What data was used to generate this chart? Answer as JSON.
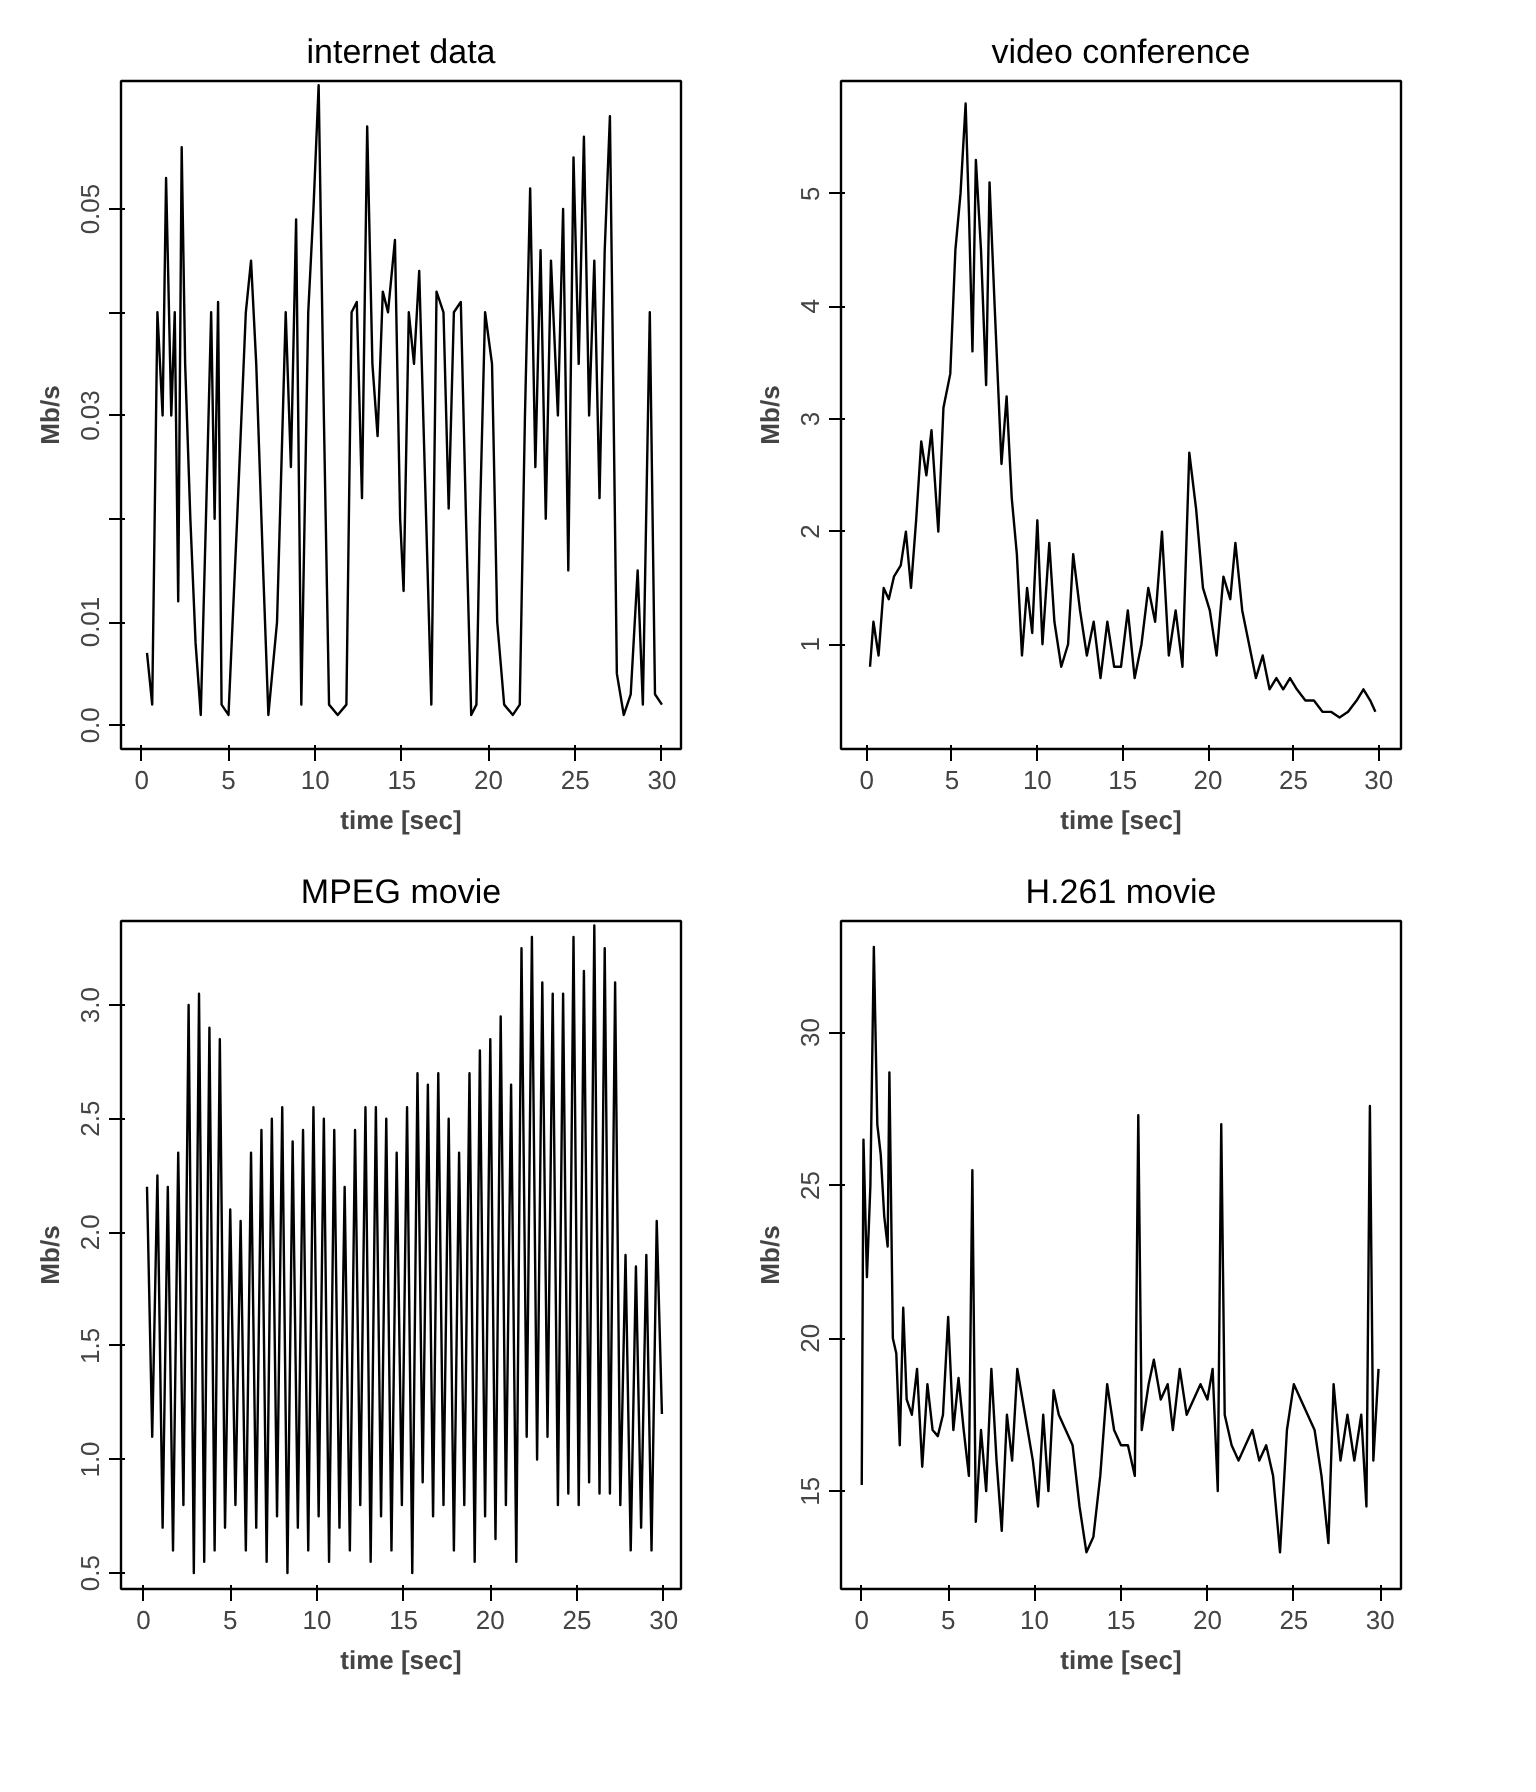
{
  "chart_data": [
    {
      "type": "line",
      "title": "internet data",
      "xlabel": "time [sec]",
      "ylabel": "Mb/s",
      "color": "#000000",
      "xlim": [
        -1.2,
        31.1
      ],
      "ylim": [
        -0.0023,
        0.0624
      ],
      "xticks": [
        0,
        5,
        10,
        15,
        20,
        25,
        30
      ],
      "yticks": [
        {
          "value": 0,
          "label": "0.0"
        },
        0.01,
        {
          "value": 0.02,
          "label": null
        },
        0.03,
        {
          "value": 0.04,
          "label": null
        },
        0.05
      ],
      "x": [
        0.3,
        0.6,
        0.9,
        1.2,
        1.4,
        1.7,
        1.9,
        2.1,
        2.3,
        2.5,
        2.8,
        3.1,
        3.4,
        3.7,
        4.0,
        4.2,
        4.4,
        4.6,
        5.0,
        5.5,
        6.0,
        6.3,
        6.6,
        7.0,
        7.3,
        7.8,
        8.3,
        8.6,
        8.9,
        9.2,
        9.6,
        9.9,
        10.2,
        10.5,
        10.8,
        11.3,
        11.8,
        12.1,
        12.4,
        12.7,
        13.0,
        13.3,
        13.6,
        13.9,
        14.2,
        14.6,
        14.9,
        15.1,
        15.4,
        15.7,
        16.0,
        16.4,
        16.7,
        17.0,
        17.4,
        17.7,
        18.0,
        18.4,
        18.7,
        19.0,
        19.3,
        19.5,
        19.8,
        20.2,
        20.5,
        20.9,
        21.4,
        21.8,
        22.1,
        22.4,
        22.7,
        23.0,
        23.3,
        23.6,
        24.0,
        24.3,
        24.6,
        24.9,
        25.2,
        25.5,
        25.8,
        26.1,
        26.4,
        26.7,
        27.0,
        27.4,
        27.8,
        28.2,
        28.6,
        28.9,
        29.3,
        29.6,
        30.0
      ],
      "values": [
        0.007,
        0.002,
        0.04,
        0.03,
        0.053,
        0.03,
        0.04,
        0.012,
        0.056,
        0.035,
        0.02,
        0.008,
        0.001,
        0.02,
        0.04,
        0.02,
        0.041,
        0.002,
        0.001,
        0.02,
        0.04,
        0.045,
        0.035,
        0.015,
        0.001,
        0.01,
        0.04,
        0.025,
        0.049,
        0.002,
        0.04,
        0.05,
        0.062,
        0.03,
        0.002,
        0.001,
        0.002,
        0.04,
        0.041,
        0.022,
        0.058,
        0.035,
        0.028,
        0.042,
        0.04,
        0.047,
        0.02,
        0.013,
        0.04,
        0.035,
        0.044,
        0.02,
        0.002,
        0.042,
        0.04,
        0.021,
        0.04,
        0.041,
        0.02,
        0.001,
        0.002,
        0.02,
        0.04,
        0.035,
        0.01,
        0.002,
        0.001,
        0.002,
        0.03,
        0.052,
        0.025,
        0.046,
        0.02,
        0.045,
        0.03,
        0.05,
        0.015,
        0.055,
        0.035,
        0.057,
        0.03,
        0.045,
        0.022,
        0.046,
        0.059,
        0.005,
        0.001,
        0.003,
        0.015,
        0.002,
        0.04,
        0.003,
        0.002
      ]
    },
    {
      "type": "line",
      "title": "video conference",
      "xlabel": "time [sec]",
      "ylabel": "Mb/s",
      "color": "#000000",
      "xlim": [
        -1.5,
        31.3
      ],
      "ylim": [
        0.07,
        6.0
      ],
      "xticks": [
        0,
        5,
        10,
        15,
        20,
        25,
        30
      ],
      "yticks": [
        1,
        2,
        3,
        4,
        5
      ],
      "x": [
        0.2,
        0.4,
        0.7,
        1.0,
        1.3,
        1.6,
        2.0,
        2.3,
        2.6,
        2.9,
        3.2,
        3.5,
        3.8,
        4.2,
        4.5,
        4.9,
        5.2,
        5.5,
        5.8,
        6.0,
        6.2,
        6.4,
        6.7,
        7.0,
        7.2,
        7.5,
        7.9,
        8.2,
        8.5,
        8.8,
        9.1,
        9.4,
        9.7,
        10.0,
        10.3,
        10.7,
        11.0,
        11.4,
        11.8,
        12.1,
        12.5,
        12.9,
        13.3,
        13.7,
        14.1,
        14.5,
        14.9,
        15.3,
        15.7,
        16.1,
        16.5,
        16.9,
        17.3,
        17.7,
        18.1,
        18.5,
        18.9,
        19.3,
        19.7,
        20.1,
        20.5,
        20.9,
        21.3,
        21.6,
        22.0,
        22.4,
        22.8,
        23.2,
        23.6,
        24.0,
        24.4,
        24.8,
        25.2,
        25.7,
        26.2,
        26.7,
        27.2,
        27.7,
        28.2,
        28.7,
        29.1,
        29.5,
        29.8
      ],
      "values": [
        0.8,
        1.2,
        0.9,
        1.5,
        1.4,
        1.6,
        1.7,
        2.0,
        1.5,
        2.1,
        2.8,
        2.5,
        2.9,
        2.0,
        3.1,
        3.4,
        4.5,
        5.0,
        5.8,
        4.8,
        3.6,
        5.3,
        4.5,
        3.3,
        5.1,
        4.0,
        2.6,
        3.2,
        2.3,
        1.8,
        0.9,
        1.5,
        1.1,
        2.1,
        1.0,
        1.9,
        1.2,
        0.8,
        1.0,
        1.8,
        1.3,
        0.9,
        1.2,
        0.7,
        1.2,
        0.8,
        0.8,
        1.3,
        0.7,
        1.0,
        1.5,
        1.2,
        2.0,
        0.9,
        1.3,
        0.8,
        2.7,
        2.2,
        1.5,
        1.3,
        0.9,
        1.6,
        1.4,
        1.9,
        1.3,
        1.0,
        0.7,
        0.9,
        0.6,
        0.7,
        0.6,
        0.7,
        0.6,
        0.5,
        0.5,
        0.4,
        0.4,
        0.35,
        0.4,
        0.5,
        0.6,
        0.5,
        0.4
      ]
    },
    {
      "type": "line",
      "title": "MPEG movie",
      "xlabel": "time [sec]",
      "ylabel": "Mb/s",
      "color": "#000000",
      "xlim": [
        -1.3,
        31.0
      ],
      "ylim": [
        0.43,
        3.37
      ],
      "xticks": [
        0,
        5,
        10,
        15,
        20,
        25,
        30
      ],
      "yticks": [
        0.5,
        {
          "value": 1,
          "label": "1.0"
        },
        1.5,
        {
          "value": 2,
          "label": "2.0"
        },
        2.5,
        {
          "value": 3,
          "label": "3.0"
        }
      ],
      "x": [
        0.2,
        0.5,
        0.8,
        1.1,
        1.4,
        1.7,
        2.0,
        2.3,
        2.6,
        2.9,
        3.2,
        3.5,
        3.8,
        4.1,
        4.4,
        4.7,
        5.0,
        5.3,
        5.6,
        5.9,
        6.2,
        6.5,
        6.8,
        7.1,
        7.4,
        7.7,
        8.0,
        8.3,
        8.6,
        8.9,
        9.2,
        9.5,
        9.8,
        10.1,
        10.4,
        10.7,
        11.0,
        11.3,
        11.6,
        11.9,
        12.2,
        12.5,
        12.8,
        13.1,
        13.4,
        13.7,
        14.0,
        14.3,
        14.6,
        14.9,
        15.2,
        15.5,
        15.8,
        16.1,
        16.4,
        16.7,
        17.0,
        17.3,
        17.6,
        17.9,
        18.2,
        18.5,
        18.8,
        19.1,
        19.4,
        19.7,
        20.0,
        20.3,
        20.6,
        20.9,
        21.2,
        21.5,
        21.8,
        22.1,
        22.4,
        22.7,
        23.0,
        23.3,
        23.6,
        23.9,
        24.2,
        24.5,
        24.8,
        25.1,
        25.4,
        25.7,
        26.0,
        26.3,
        26.6,
        26.9,
        27.2,
        27.5,
        27.8,
        28.1,
        28.4,
        28.7,
        29.0,
        29.3,
        29.6,
        29.9
      ],
      "values": [
        2.2,
        1.1,
        2.25,
        0.7,
        2.2,
        0.6,
        2.35,
        0.8,
        3.0,
        0.5,
        3.05,
        0.55,
        2.9,
        0.6,
        2.85,
        0.7,
        2.1,
        0.8,
        2.05,
        0.6,
        2.35,
        0.7,
        2.45,
        0.55,
        2.5,
        0.75,
        2.55,
        0.5,
        2.4,
        0.7,
        2.45,
        0.6,
        2.55,
        0.75,
        2.5,
        0.55,
        2.45,
        0.7,
        2.2,
        0.6,
        2.45,
        0.8,
        2.55,
        0.55,
        2.55,
        0.75,
        2.5,
        0.6,
        2.35,
        0.8,
        2.55,
        0.5,
        2.7,
        0.9,
        2.65,
        0.75,
        2.7,
        0.8,
        2.5,
        0.6,
        2.35,
        0.8,
        2.7,
        0.55,
        2.8,
        0.75,
        2.85,
        0.65,
        2.95,
        0.8,
        2.65,
        0.55,
        3.25,
        1.1,
        3.3,
        1.0,
        3.1,
        1.1,
        3.05,
        0.8,
        3.05,
        0.85,
        3.3,
        0.8,
        3.15,
        0.9,
        3.35,
        0.85,
        3.25,
        0.85,
        3.1,
        0.8,
        1.9,
        0.6,
        1.85,
        0.7,
        1.9,
        0.6,
        2.05,
        1.2
      ]
    },
    {
      "type": "line",
      "title": "H.261 movie",
      "xlabel": "time [sec]",
      "ylabel": "Mb/s",
      "color": "#000000",
      "xlim": [
        -1.2,
        31.2
      ],
      "ylim": [
        11.8,
        33.65
      ],
      "xticks": [
        0,
        5,
        10,
        15,
        20,
        25,
        30
      ],
      "yticks": [
        15,
        20,
        25,
        30
      ],
      "x": [
        0,
        0.1,
        0.3,
        0.5,
        0.7,
        0.9,
        1.1,
        1.3,
        1.5,
        1.6,
        1.8,
        2.0,
        2.2,
        2.4,
        2.6,
        2.9,
        3.2,
        3.5,
        3.8,
        4.1,
        4.4,
        4.7,
        5.0,
        5.3,
        5.6,
        5.9,
        6.2,
        6.4,
        6.6,
        6.9,
        7.2,
        7.5,
        7.8,
        8.1,
        8.4,
        8.7,
        9.0,
        9.3,
        9.6,
        9.9,
        10.2,
        10.5,
        10.8,
        11.1,
        11.4,
        11.8,
        12.2,
        12.6,
        13.0,
        13.4,
        13.8,
        14.2,
        14.6,
        15.0,
        15.4,
        15.8,
        16.0,
        16.2,
        16.6,
        16.9,
        17.3,
        17.7,
        18.0,
        18.4,
        18.8,
        19.2,
        19.6,
        20.0,
        20.3,
        20.6,
        20.8,
        21.0,
        21.4,
        21.8,
        22.2,
        22.6,
        23.0,
        23.4,
        23.8,
        24.2,
        24.6,
        25.0,
        25.4,
        25.8,
        26.2,
        26.6,
        27.0,
        27.3,
        27.7,
        28.1,
        28.5,
        28.9,
        29.2,
        29.4,
        29.6,
        29.9
      ],
      "values": [
        15.2,
        26.5,
        22,
        25,
        32.8,
        27,
        26,
        24,
        23,
        28.7,
        20,
        19.5,
        16.5,
        21,
        18,
        17.5,
        19,
        15.8,
        18.5,
        17,
        16.8,
        17.5,
        20.7,
        17,
        18.7,
        17,
        15.5,
        25.5,
        14,
        17,
        15,
        19,
        16,
        13.7,
        17.5,
        16,
        19,
        18,
        17,
        16,
        14.5,
        17.5,
        15,
        18.3,
        17.5,
        17,
        16.5,
        14.5,
        13,
        13.5,
        15.5,
        18.5,
        17,
        16.5,
        16.5,
        15.5,
        27.3,
        17,
        18.5,
        19.3,
        18,
        18.5,
        17,
        19,
        17.5,
        18,
        18.5,
        18,
        19,
        15,
        27,
        17.5,
        16.5,
        16,
        16.5,
        17,
        16,
        16.5,
        15.5,
        13,
        17,
        18.5,
        18,
        17.5,
        17,
        15.5,
        13.3,
        18.5,
        16,
        17.5,
        16,
        17.5,
        14.5,
        27.6,
        16,
        19
      ]
    }
  ]
}
